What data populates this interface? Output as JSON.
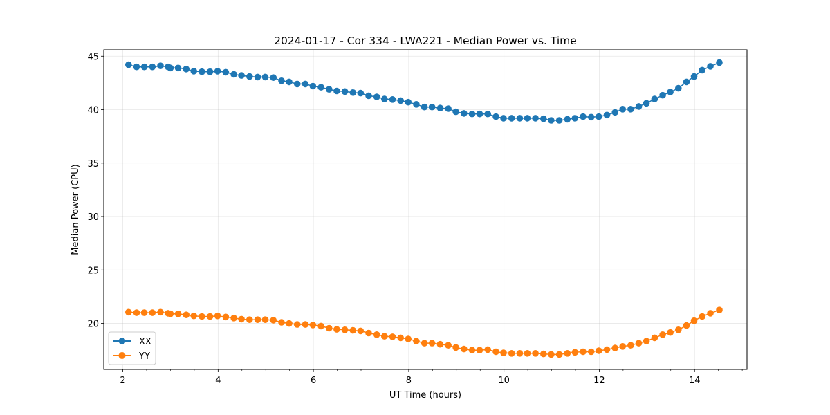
{
  "chart_data": {
    "type": "line",
    "title": "2024-01-17 - Cor 334 - LWA221 - Median Power vs. Time",
    "xlabel": "UT Time (hours)",
    "ylabel": "Median Power (CPU)",
    "xlim": [
      1.6,
      15.1
    ],
    "ylim": [
      15.7,
      45.6
    ],
    "xticks": [
      2,
      4,
      6,
      8,
      10,
      12,
      14
    ],
    "xtick_labels": [
      "2",
      "4",
      "6",
      "8",
      "10",
      "12",
      "14"
    ],
    "yticks": [
      20,
      25,
      30,
      35,
      40,
      45
    ],
    "ytick_labels": [
      "20",
      "25",
      "30",
      "35",
      "40",
      "45"
    ],
    "x_minor_step": 0.5,
    "grid": true,
    "legend": "lower-left",
    "x": [
      2.12,
      2.29,
      2.45,
      2.62,
      2.79,
      2.95,
      3.0,
      3.16,
      3.33,
      3.49,
      3.66,
      3.83,
      3.99,
      4.16,
      4.33,
      4.49,
      4.66,
      4.83,
      4.99,
      5.16,
      5.33,
      5.49,
      5.66,
      5.83,
      5.99,
      6.16,
      6.33,
      6.49,
      6.66,
      6.83,
      6.99,
      7.16,
      7.33,
      7.49,
      7.66,
      7.83,
      7.99,
      8.16,
      8.33,
      8.49,
      8.66,
      8.83,
      8.99,
      9.16,
      9.33,
      9.49,
      9.66,
      9.83,
      9.99,
      10.16,
      10.33,
      10.49,
      10.66,
      10.83,
      10.99,
      11.16,
      11.33,
      11.49,
      11.66,
      11.83,
      11.99,
      12.16,
      12.33,
      12.49,
      12.66,
      12.83,
      12.99,
      13.16,
      13.33,
      13.49,
      13.66,
      13.83,
      13.99,
      14.16,
      14.33,
      14.52
    ],
    "series": [
      {
        "name": "XX",
        "color": "#1f77b4",
        "values": [
          44.2,
          44.0,
          44.0,
          44.0,
          44.1,
          44.0,
          43.9,
          43.9,
          43.8,
          43.6,
          43.55,
          43.55,
          43.6,
          43.5,
          43.3,
          43.2,
          43.1,
          43.05,
          43.05,
          43.0,
          42.7,
          42.6,
          42.4,
          42.4,
          42.2,
          42.1,
          41.9,
          41.75,
          41.7,
          41.6,
          41.55,
          41.3,
          41.2,
          41.0,
          40.95,
          40.85,
          40.7,
          40.5,
          40.25,
          40.25,
          40.15,
          40.1,
          39.8,
          39.65,
          39.6,
          39.6,
          39.6,
          39.35,
          39.2,
          39.2,
          39.2,
          39.2,
          39.2,
          39.15,
          39.0,
          39.0,
          39.1,
          39.2,
          39.35,
          39.3,
          39.35,
          39.5,
          39.75,
          40.05,
          40.05,
          40.3,
          40.6,
          41.0,
          41.35,
          41.65,
          42.0,
          42.6,
          43.1,
          43.7,
          44.05,
          44.4
        ]
      },
      {
        "name": "YY",
        "color": "#ff7f0e",
        "values": [
          21.05,
          21.0,
          21.0,
          21.0,
          21.05,
          20.95,
          20.9,
          20.9,
          20.8,
          20.7,
          20.65,
          20.65,
          20.7,
          20.6,
          20.5,
          20.4,
          20.35,
          20.35,
          20.35,
          20.3,
          20.1,
          20.0,
          19.9,
          19.9,
          19.85,
          19.75,
          19.55,
          19.45,
          19.4,
          19.35,
          19.3,
          19.1,
          18.95,
          18.8,
          18.75,
          18.65,
          18.55,
          18.35,
          18.15,
          18.15,
          18.05,
          17.95,
          17.75,
          17.6,
          17.5,
          17.5,
          17.55,
          17.35,
          17.25,
          17.2,
          17.2,
          17.2,
          17.2,
          17.15,
          17.1,
          17.1,
          17.2,
          17.3,
          17.35,
          17.35,
          17.45,
          17.55,
          17.7,
          17.85,
          17.95,
          18.15,
          18.35,
          18.65,
          18.95,
          19.15,
          19.4,
          19.8,
          20.25,
          20.65,
          20.95,
          21.25
        ]
      }
    ]
  }
}
